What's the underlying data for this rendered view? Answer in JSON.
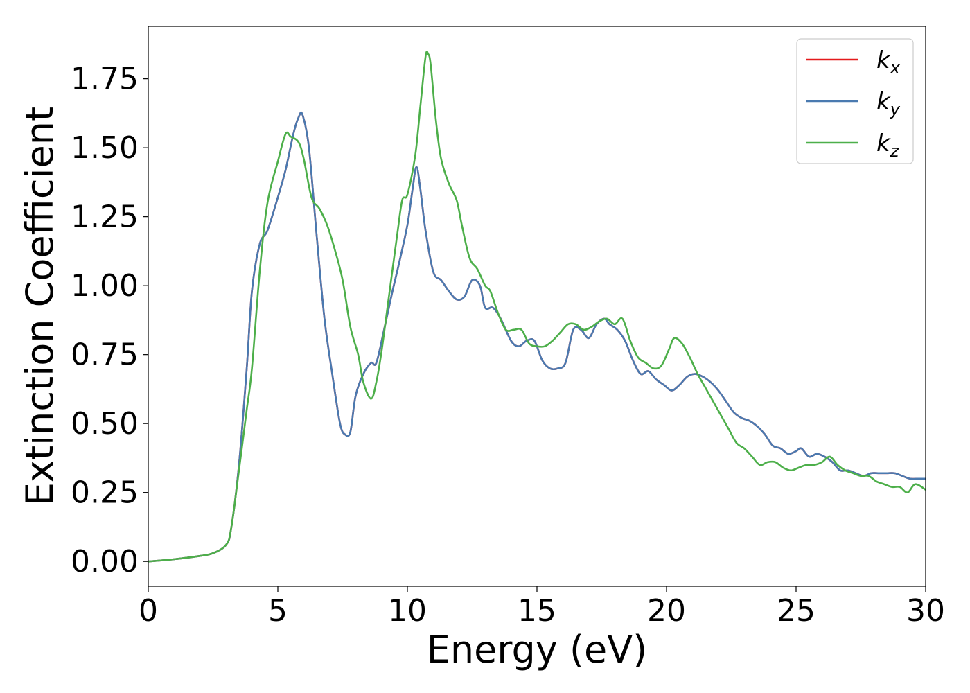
{
  "chart_data": {
    "type": "line",
    "title": "",
    "xlabel": "Energy (eV)",
    "ylabel": "Extinction Coefficient",
    "xlim": [
      0,
      30
    ],
    "ylim": [
      -0.09,
      1.94
    ],
    "xticks": [
      0,
      5,
      10,
      15,
      20,
      25,
      30
    ],
    "xtick_labels": [
      "0",
      "5",
      "10",
      "15",
      "20",
      "25",
      "30"
    ],
    "yticks": [
      0.0,
      0.25,
      0.5,
      0.75,
      1.0,
      1.25,
      1.5,
      1.75
    ],
    "ytick_labels": [
      "0.00",
      "0.25",
      "0.50",
      "0.75",
      "1.00",
      "1.25",
      "1.50",
      "1.75"
    ],
    "grid": false,
    "legend_position": "top-right",
    "series": [
      {
        "name": "k_x",
        "legend_base": "k",
        "legend_sub": "x",
        "color": "#e41a1c",
        "x": [
          0,
          1,
          2,
          2.5,
          3,
          3.2,
          3.5,
          3.8,
          4.0,
          4.3,
          4.6,
          5.0,
          5.3,
          5.6,
          5.8,
          5.95,
          6.2,
          6.5,
          6.8,
          7.1,
          7.4,
          7.6,
          7.8,
          8.0,
          8.3,
          8.6,
          8.8,
          9.1,
          9.4,
          9.7,
          10.0,
          10.2,
          10.35,
          10.5,
          10.7,
          11.0,
          11.3,
          11.6,
          11.9,
          12.2,
          12.5,
          12.8,
          13.0,
          13.3,
          13.6,
          14.0,
          14.3,
          14.6,
          14.9,
          15.2,
          15.5,
          15.8,
          16.1,
          16.4,
          16.7,
          17.0,
          17.3,
          17.6,
          17.8,
          18.1,
          18.4,
          18.7,
          19.0,
          19.3,
          19.6,
          19.9,
          20.2,
          20.5,
          20.8,
          21.1,
          21.4,
          21.7,
          22.0,
          22.3,
          22.6,
          22.9,
          23.2,
          23.5,
          23.8,
          24.1,
          24.4,
          24.7,
          25.0,
          25.2,
          25.5,
          25.8,
          26.1,
          26.4,
          26.7,
          27.0,
          27.3,
          27.6,
          27.9,
          28.2,
          28.5,
          28.8,
          29.1,
          29.4,
          29.7,
          30.0
        ],
        "y": [
          0.0,
          0.008,
          0.02,
          0.03,
          0.06,
          0.12,
          0.35,
          0.7,
          0.98,
          1.15,
          1.2,
          1.32,
          1.42,
          1.55,
          1.61,
          1.62,
          1.5,
          1.18,
          0.88,
          0.68,
          0.5,
          0.46,
          0.47,
          0.6,
          0.68,
          0.72,
          0.72,
          0.84,
          0.97,
          1.09,
          1.22,
          1.35,
          1.43,
          1.35,
          1.2,
          1.05,
          1.02,
          0.98,
          0.95,
          0.96,
          1.02,
          1.0,
          0.92,
          0.92,
          0.88,
          0.8,
          0.78,
          0.8,
          0.8,
          0.73,
          0.7,
          0.7,
          0.72,
          0.84,
          0.84,
          0.81,
          0.86,
          0.88,
          0.86,
          0.84,
          0.8,
          0.73,
          0.68,
          0.69,
          0.66,
          0.64,
          0.62,
          0.64,
          0.67,
          0.68,
          0.67,
          0.65,
          0.62,
          0.58,
          0.54,
          0.52,
          0.51,
          0.49,
          0.46,
          0.42,
          0.41,
          0.39,
          0.4,
          0.41,
          0.38,
          0.39,
          0.38,
          0.36,
          0.33,
          0.33,
          0.32,
          0.31,
          0.32,
          0.32,
          0.32,
          0.32,
          0.31,
          0.3,
          0.3,
          0.3
        ]
      },
      {
        "name": "k_y",
        "legend_base": "k",
        "legend_sub": "y",
        "color": "#4a7ab0",
        "x": [
          0,
          1,
          2,
          2.5,
          3,
          3.2,
          3.5,
          3.8,
          4.0,
          4.3,
          4.6,
          5.0,
          5.3,
          5.6,
          5.8,
          5.95,
          6.2,
          6.5,
          6.8,
          7.1,
          7.4,
          7.6,
          7.8,
          8.0,
          8.3,
          8.6,
          8.8,
          9.1,
          9.4,
          9.7,
          10.0,
          10.2,
          10.35,
          10.5,
          10.7,
          11.0,
          11.3,
          11.6,
          11.9,
          12.2,
          12.5,
          12.8,
          13.0,
          13.3,
          13.6,
          14.0,
          14.3,
          14.6,
          14.9,
          15.2,
          15.5,
          15.8,
          16.1,
          16.4,
          16.7,
          17.0,
          17.3,
          17.6,
          17.8,
          18.1,
          18.4,
          18.7,
          19.0,
          19.3,
          19.6,
          19.9,
          20.2,
          20.5,
          20.8,
          21.1,
          21.4,
          21.7,
          22.0,
          22.3,
          22.6,
          22.9,
          23.2,
          23.5,
          23.8,
          24.1,
          24.4,
          24.7,
          25.0,
          25.2,
          25.5,
          25.8,
          26.1,
          26.4,
          26.7,
          27.0,
          27.3,
          27.6,
          27.9,
          28.2,
          28.5,
          28.8,
          29.1,
          29.4,
          29.7,
          30.0
        ],
        "y": [
          0.0,
          0.008,
          0.02,
          0.03,
          0.06,
          0.12,
          0.35,
          0.7,
          0.98,
          1.15,
          1.2,
          1.32,
          1.42,
          1.55,
          1.61,
          1.62,
          1.5,
          1.18,
          0.88,
          0.68,
          0.5,
          0.46,
          0.47,
          0.6,
          0.68,
          0.72,
          0.72,
          0.84,
          0.97,
          1.09,
          1.22,
          1.35,
          1.43,
          1.35,
          1.2,
          1.05,
          1.02,
          0.98,
          0.95,
          0.96,
          1.02,
          1.0,
          0.92,
          0.92,
          0.88,
          0.8,
          0.78,
          0.8,
          0.8,
          0.73,
          0.7,
          0.7,
          0.72,
          0.84,
          0.84,
          0.81,
          0.86,
          0.88,
          0.86,
          0.84,
          0.8,
          0.73,
          0.68,
          0.69,
          0.66,
          0.64,
          0.62,
          0.64,
          0.67,
          0.68,
          0.67,
          0.65,
          0.62,
          0.58,
          0.54,
          0.52,
          0.51,
          0.49,
          0.46,
          0.42,
          0.41,
          0.39,
          0.4,
          0.41,
          0.38,
          0.39,
          0.38,
          0.36,
          0.33,
          0.33,
          0.32,
          0.31,
          0.32,
          0.32,
          0.32,
          0.32,
          0.31,
          0.3,
          0.3,
          0.3
        ]
      },
      {
        "name": "k_z",
        "legend_base": "k",
        "legend_sub": "z",
        "color": "#4daf4a",
        "x": [
          0,
          1,
          2,
          2.5,
          3,
          3.2,
          3.5,
          3.8,
          4.0,
          4.3,
          4.6,
          5.0,
          5.3,
          5.5,
          5.8,
          6.0,
          6.3,
          6.6,
          6.9,
          7.2,
          7.5,
          7.8,
          8.1,
          8.3,
          8.6,
          8.8,
          9.0,
          9.3,
          9.6,
          9.8,
          10.0,
          10.3,
          10.5,
          10.7,
          10.8,
          10.9,
          11.1,
          11.3,
          11.6,
          11.9,
          12.1,
          12.4,
          12.7,
          13.0,
          13.2,
          13.5,
          13.8,
          14.1,
          14.4,
          14.7,
          15.0,
          15.3,
          15.6,
          15.9,
          16.2,
          16.5,
          16.8,
          17.1,
          17.4,
          17.7,
          18.0,
          18.3,
          18.6,
          18.9,
          19.2,
          19.5,
          19.8,
          20.1,
          20.3,
          20.6,
          20.9,
          21.2,
          21.5,
          21.8,
          22.1,
          22.4,
          22.7,
          23.0,
          23.3,
          23.6,
          23.9,
          24.2,
          24.5,
          24.8,
          25.1,
          25.4,
          25.7,
          26.0,
          26.3,
          26.6,
          26.9,
          27.2,
          27.5,
          27.8,
          28.1,
          28.4,
          28.7,
          29.0,
          29.3,
          29.6,
          30.0
        ],
        "y": [
          0.0,
          0.008,
          0.02,
          0.03,
          0.06,
          0.12,
          0.33,
          0.55,
          0.7,
          1.05,
          1.3,
          1.45,
          1.55,
          1.54,
          1.52,
          1.46,
          1.32,
          1.28,
          1.22,
          1.13,
          1.02,
          0.85,
          0.75,
          0.65,
          0.59,
          0.65,
          0.76,
          0.97,
          1.18,
          1.31,
          1.33,
          1.47,
          1.65,
          1.83,
          1.84,
          1.8,
          1.6,
          1.46,
          1.37,
          1.31,
          1.22,
          1.1,
          1.06,
          1.0,
          0.98,
          0.9,
          0.84,
          0.84,
          0.84,
          0.79,
          0.78,
          0.78,
          0.8,
          0.83,
          0.86,
          0.86,
          0.84,
          0.85,
          0.87,
          0.88,
          0.86,
          0.88,
          0.8,
          0.74,
          0.72,
          0.7,
          0.71,
          0.77,
          0.81,
          0.79,
          0.74,
          0.68,
          0.63,
          0.58,
          0.53,
          0.48,
          0.43,
          0.41,
          0.38,
          0.35,
          0.36,
          0.36,
          0.34,
          0.33,
          0.34,
          0.35,
          0.35,
          0.36,
          0.38,
          0.35,
          0.33,
          0.32,
          0.31,
          0.31,
          0.29,
          0.28,
          0.27,
          0.27,
          0.25,
          0.28,
          0.26
        ]
      }
    ]
  }
}
